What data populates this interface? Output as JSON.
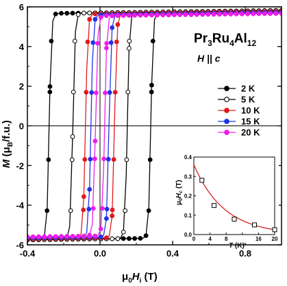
{
  "chart_data": [
    {
      "type": "line",
      "title": "",
      "annotation_compound": "Pr3Ru4Al12",
      "annotation_field": "H || c",
      "xlabel": "μ0Hi (T)",
      "ylabel": "M (μB/f.u.)",
      "xlim": [
        -0.4,
        1.0
      ],
      "ylim": [
        -6,
        6
      ],
      "xticks": [
        "-0.4",
        "0.0",
        "0.4",
        "0.8"
      ],
      "yticks": [
        "-6",
        "-4",
        "-2",
        "0",
        "2",
        "4",
        "6"
      ],
      "legend_position": "right",
      "series": [
        {
          "name": "2 K",
          "color": "#000000",
          "marker": "filled-circle",
          "Hc": 0.28,
          "Ms": 5.7
        },
        {
          "name": "5 K",
          "color": "#000000",
          "marker": "open-circle",
          "Hc": 0.15,
          "Ms": 5.7
        },
        {
          "name": "10 K",
          "color": "#e0191c",
          "marker": "filled-circle",
          "Hc": 0.08,
          "Ms": 5.65
        },
        {
          "name": "15 K",
          "color": "#1f33e6",
          "marker": "filled-circle",
          "Hc": 0.05,
          "Ms": 5.6
        },
        {
          "name": "20 K",
          "color": "#ee1ee8",
          "marker": "filled-circle",
          "Hc": 0.025,
          "Ms": 5.55
        }
      ]
    },
    {
      "type": "scatter",
      "title": "",
      "xlabel": "T (K)",
      "ylabel": "μ0Hc (T)",
      "xlim": [
        0,
        20
      ],
      "ylim": [
        0,
        0.4
      ],
      "xticks": [
        "0",
        "4",
        "8",
        "12",
        "16",
        "20"
      ],
      "yticks": [
        "0.0",
        "0.1",
        "0.2",
        "0.3",
        "0.4"
      ],
      "points": [
        {
          "x": 2,
          "y": 0.28
        },
        {
          "x": 5,
          "y": 0.15
        },
        {
          "x": 10,
          "y": 0.08
        },
        {
          "x": 15,
          "y": 0.05
        },
        {
          "x": 20,
          "y": 0.025
        }
      ],
      "fit": {
        "color": "#d22020",
        "a": 0.36,
        "tau": 7.5,
        "c": 0.0
      }
    }
  ]
}
